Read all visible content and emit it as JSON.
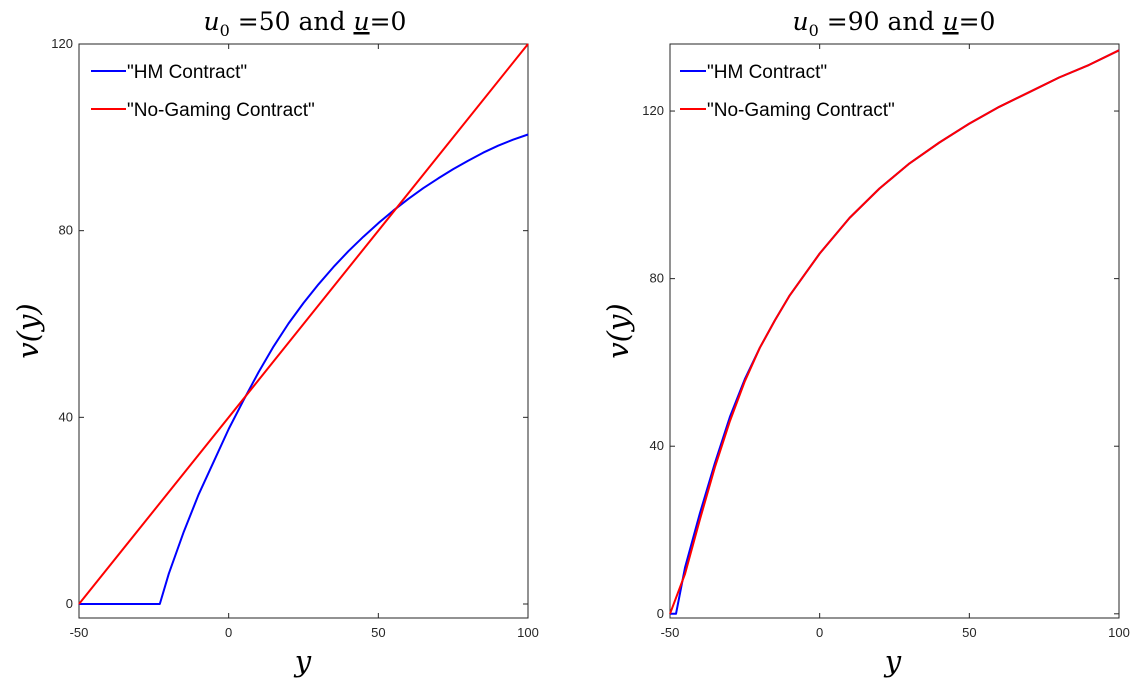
{
  "chart_data": [
    {
      "type": "line",
      "title": {
        "u0_value": "50",
        "u_value": "0"
      },
      "xlabel": "y",
      "ylabel": "v(y)",
      "xlim": [
        -50,
        100
      ],
      "ylim": [
        -3,
        120
      ],
      "xticks": [
        -50,
        0,
        50,
        100
      ],
      "xtick_labels": [
        "-50",
        "0",
        "50",
        "100"
      ],
      "yticks": [
        0,
        40,
        80,
        120
      ],
      "ytick_labels": [
        "0",
        "40",
        "80",
        "120"
      ],
      "legend_position": "top-left",
      "series": [
        {
          "name": "\"HM Contract\"",
          "color": "#0000ff",
          "x": [
            -50,
            -23,
            -20,
            -15,
            -10,
            -5,
            0,
            5,
            10,
            15,
            20,
            25,
            30,
            35,
            40,
            45,
            50,
            55,
            60,
            65,
            70,
            75,
            80,
            85,
            90,
            95,
            100
          ],
          "y": [
            0,
            0,
            6.5,
            15.5,
            23.5,
            30.5,
            37.5,
            43.7,
            49.7,
            55.2,
            60.1,
            64.5,
            68.5,
            72.2,
            75.6,
            78.7,
            81.6,
            84.3,
            86.8,
            89.1,
            91.2,
            93.2,
            95.0,
            96.7,
            98.2,
            99.5,
            100.6
          ]
        },
        {
          "name": "\"No-Gaming Contract\"",
          "color": "#ff0000",
          "x": [
            -50,
            100
          ],
          "y": [
            0,
            120
          ]
        }
      ]
    },
    {
      "type": "line",
      "title": {
        "u0_value": "90",
        "u_value": "0"
      },
      "xlabel": "y",
      "ylabel": "v(y)",
      "xlim": [
        -50,
        100
      ],
      "ylim": [
        -1,
        136
      ],
      "xticks": [
        -50,
        0,
        50,
        100
      ],
      "xtick_labels": [
        "-50",
        "0",
        "50",
        "100"
      ],
      "yticks": [
        0,
        40,
        80,
        120
      ],
      "ytick_labels": [
        "0",
        "40",
        "80",
        "120"
      ],
      "legend_position": "top-left",
      "series": [
        {
          "name": "\"HM Contract\"",
          "color": "#0000ff",
          "x": [
            -50,
            -48,
            -45,
            -40,
            -35,
            -30,
            -25,
            -20,
            -15,
            -10,
            -5,
            0,
            10,
            20,
            30,
            40,
            50,
            60,
            70,
            80,
            90,
            100
          ],
          "y": [
            0,
            0,
            11,
            24,
            36,
            47,
            56,
            63.5,
            70,
            76,
            81,
            86,
            94.5,
            101.5,
            107.5,
            112.5,
            117,
            121,
            124.5,
            128,
            131,
            134.5
          ]
        },
        {
          "name": "\"No-Gaming Contract\"",
          "color": "#ff0000",
          "x": [
            -50,
            -45,
            -40,
            -35,
            -30,
            -25,
            -20,
            -15,
            -10,
            -5,
            0,
            10,
            20,
            30,
            40,
            50,
            60,
            70,
            80,
            90,
            100
          ],
          "y": [
            0,
            9.5,
            22.5,
            35,
            46,
            55.5,
            63.5,
            70,
            76,
            81,
            86,
            94.5,
            101.5,
            107.5,
            112.5,
            117,
            121,
            124.5,
            128,
            131,
            134.5
          ]
        }
      ]
    }
  ]
}
